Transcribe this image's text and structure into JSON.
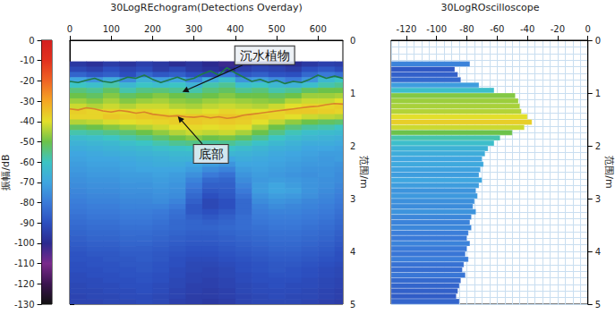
{
  "chart_data": [
    {
      "type": "heatmap",
      "title": "30LogREchogram(Detections Overday)",
      "y_label": "范围/m",
      "xlim": [
        0,
        660
      ],
      "xticks": [
        0,
        100,
        200,
        300,
        400,
        500,
        600
      ],
      "ylim": [
        0,
        5
      ],
      "yticks": [
        0,
        1,
        2,
        3,
        4,
        5
      ],
      "x_edges": [
        0,
        40,
        80,
        120,
        160,
        200,
        240,
        280,
        320,
        360,
        400,
        440,
        480,
        520,
        560,
        600,
        640,
        660
      ],
      "y_edges": [
        0.4,
        0.5,
        0.6,
        0.7,
        0.8,
        0.9,
        1.0,
        1.1,
        1.2,
        1.3,
        1.4,
        1.5,
        1.6,
        1.7,
        1.8,
        1.9,
        2.0,
        2.1,
        2.2,
        2.3,
        2.4,
        2.5,
        2.6,
        2.7,
        2.8,
        2.9,
        3.0,
        3.1,
        3.2,
        3.3,
        3.4,
        3.5,
        3.6,
        3.7,
        3.8,
        3.9,
        4.0,
        4.1,
        4.2,
        4.3,
        4.4,
        4.5,
        4.6,
        4.7,
        4.8,
        4.9,
        5.0
      ],
      "cells": [
        [
          -96,
          -98,
          -95,
          -97,
          -94,
          -96,
          -99,
          -97,
          -100,
          -102,
          -98,
          -95,
          -97,
          -99,
          -96,
          -94,
          -95
        ],
        [
          -92,
          -94,
          -90,
          -93,
          -91,
          -95,
          -92,
          -96,
          -98,
          -100,
          -94,
          -92,
          -93,
          -95,
          -90,
          -88,
          -91
        ],
        [
          -85,
          -88,
          -86,
          -90,
          -84,
          -88,
          -86,
          -90,
          -92,
          -80,
          -88,
          -86,
          -89,
          -90,
          -84,
          -80,
          -82
        ],
        [
          -70,
          -74,
          -68,
          -76,
          -66,
          -72,
          -70,
          -78,
          -68,
          -62,
          -74,
          -72,
          -76,
          -80,
          -74,
          -64,
          -60
        ],
        [
          -60,
          -62,
          -58,
          -64,
          -60,
          -62,
          -60,
          -66,
          -58,
          -56,
          -62,
          -60,
          -64,
          -66,
          -62,
          -58,
          -56
        ],
        [
          -54,
          -56,
          -52,
          -58,
          -55,
          -54,
          -56,
          -58,
          -54,
          -52,
          -56,
          -54,
          -58,
          -56,
          -52,
          -50,
          -50
        ],
        [
          -50,
          -52,
          -48,
          -52,
          -50,
          -48,
          -50,
          -52,
          -50,
          -48,
          -50,
          -50,
          -52,
          -50,
          -46,
          -46,
          -45
        ],
        [
          -46,
          -48,
          -45,
          -48,
          -46,
          -45,
          -47,
          -48,
          -46,
          -45,
          -46,
          -47,
          -48,
          -44,
          -42,
          -42,
          -40
        ],
        [
          -42,
          -44,
          -42,
          -44,
          -42,
          -42,
          -44,
          -45,
          -43,
          -42,
          -43,
          -44,
          -42,
          -40,
          -38,
          -38,
          -37
        ],
        [
          -37,
          -38,
          -38,
          -39,
          -38,
          -39,
          -40,
          -41,
          -40,
          -38,
          -39,
          -40,
          -38,
          -36,
          -36,
          -37,
          -38
        ],
        [
          -38,
          -38,
          -36,
          -37,
          -36,
          -36,
          -37,
          -36,
          -36,
          -35,
          -36,
          -37,
          -38,
          -40,
          -42,
          -43,
          -44
        ],
        [
          -44,
          -43,
          -41,
          -40,
          -39,
          -38,
          -37,
          -36,
          -37,
          -36,
          -37,
          -40,
          -43,
          -47,
          -50,
          -52,
          -53
        ],
        [
          -52,
          -50,
          -48,
          -46,
          -44,
          -42,
          -40,
          -39,
          -40,
          -39,
          -40,
          -45,
          -50,
          -54,
          -57,
          -58,
          -60
        ],
        [
          -58,
          -57,
          -55,
          -53,
          -50,
          -47,
          -44,
          -42,
          -43,
          -42,
          -45,
          -50,
          -55,
          -59,
          -62,
          -63,
          -64
        ],
        [
          -63,
          -62,
          -60,
          -58,
          -56,
          -53,
          -50,
          -48,
          -50,
          -49,
          -52,
          -56,
          -60,
          -63,
          -65,
          -66,
          -67
        ],
        [
          -66,
          -65,
          -64,
          -62,
          -60,
          -58,
          -56,
          -55,
          -57,
          -56,
          -58,
          -61,
          -64,
          -66,
          -68,
          -68,
          -69
        ],
        [
          -68,
          -67,
          -66,
          -65,
          -64,
          -62,
          -61,
          -60,
          -62,
          -61,
          -63,
          -65,
          -67,
          -68,
          -70,
          -70,
          -71
        ],
        [
          -70,
          -69,
          -68,
          -67,
          -66,
          -65,
          -64,
          -64,
          -66,
          -65,
          -66,
          -67,
          -69,
          -70,
          -71,
          -72,
          -72
        ],
        [
          -71,
          -70,
          -70,
          -69,
          -68,
          -67,
          -66,
          -66,
          -68,
          -70,
          -68,
          -69,
          -70,
          -71,
          -72,
          -73,
          -72
        ],
        [
          -72,
          -71,
          -71,
          -70,
          -69,
          -68,
          -68,
          -70,
          -72,
          -74,
          -70,
          -70,
          -71,
          -72,
          -73,
          -73,
          -74
        ],
        [
          -73,
          -72,
          -72,
          -71,
          -70,
          -70,
          -70,
          -72,
          -76,
          -78,
          -72,
          -71,
          -72,
          -73,
          -74,
          -74,
          -75
        ],
        [
          -74,
          -73,
          -73,
          -72,
          -72,
          -71,
          -72,
          -75,
          -80,
          -82,
          -74,
          -72,
          -73,
          -74,
          -75,
          -74,
          -76
        ],
        [
          -75,
          -74,
          -74,
          -73,
          -73,
          -72,
          -73,
          -78,
          -84,
          -85,
          -76,
          -73,
          -72,
          -73,
          -74,
          -75,
          -76
        ],
        [
          -76,
          -75,
          -75,
          -74,
          -74,
          -73,
          -74,
          -80,
          -86,
          -86,
          -78,
          -72,
          -70,
          -72,
          -74,
          -75,
          -77
        ],
        [
          -77,
          -76,
          -76,
          -75,
          -75,
          -74,
          -75,
          -82,
          -88,
          -87,
          -80,
          -72,
          -70,
          -71,
          -74,
          -76,
          -78
        ],
        [
          -78,
          -77,
          -77,
          -76,
          -76,
          -75,
          -76,
          -84,
          -90,
          -88,
          -82,
          -74,
          -72,
          -73,
          -75,
          -77,
          -79
        ],
        [
          -79,
          -78,
          -78,
          -77,
          -77,
          -76,
          -78,
          -86,
          -92,
          -90,
          -84,
          -76,
          -74,
          -75,
          -77,
          -78,
          -80
        ],
        [
          -80,
          -79,
          -79,
          -78,
          -78,
          -78,
          -80,
          -88,
          -92,
          -90,
          -84,
          -78,
          -76,
          -77,
          -78,
          -79,
          -81
        ],
        [
          -81,
          -80,
          -80,
          -79,
          -79,
          -80,
          -82,
          -88,
          -90,
          -88,
          -84,
          -79,
          -78,
          -78,
          -79,
          -80,
          -82
        ],
        [
          -82,
          -81,
          -81,
          -80,
          -80,
          -81,
          -83,
          -86,
          -88,
          -86,
          -83,
          -80,
          -79,
          -79,
          -80,
          -81,
          -83
        ],
        [
          -83,
          -82,
          -82,
          -81,
          -81,
          -82,
          -84,
          -85,
          -86,
          -85,
          -83,
          -81,
          -80,
          -80,
          -81,
          -82,
          -84
        ],
        [
          -84,
          -83,
          -83,
          -82,
          -82,
          -83,
          -84,
          -85,
          -85,
          -84,
          -83,
          -82,
          -81,
          -81,
          -82,
          -83,
          -85
        ],
        [
          -85,
          -84,
          -84,
          -83,
          -83,
          -84,
          -85,
          -86,
          -86,
          -85,
          -84,
          -83,
          -82,
          -82,
          -83,
          -84,
          -86
        ],
        [
          -86,
          -85,
          -85,
          -84,
          -84,
          -85,
          -86,
          -87,
          -87,
          -86,
          -85,
          -84,
          -83,
          -83,
          -84,
          -85,
          -87
        ],
        [
          -87,
          -86,
          -86,
          -85,
          -85,
          -86,
          -87,
          -88,
          -88,
          -87,
          -86,
          -85,
          -84,
          -84,
          -85,
          -86,
          -88
        ],
        [
          -88,
          -87,
          -87,
          -86,
          -86,
          -87,
          -88,
          -89,
          -89,
          -88,
          -87,
          -86,
          -85,
          -85,
          -86,
          -87,
          -89
        ],
        [
          -89,
          -88,
          -88,
          -87,
          -87,
          -88,
          -89,
          -90,
          -90,
          -89,
          -88,
          -87,
          -86,
          -86,
          -87,
          -88,
          -90
        ],
        [
          -89,
          -89,
          -88,
          -88,
          -87,
          -88,
          -90,
          -91,
          -91,
          -90,
          -89,
          -88,
          -87,
          -87,
          -88,
          -89,
          -90
        ],
        [
          -90,
          -89,
          -89,
          -88,
          -88,
          -89,
          -90,
          -92,
          -92,
          -91,
          -90,
          -89,
          -88,
          -88,
          -89,
          -90,
          -91
        ],
        [
          -90,
          -90,
          -89,
          -89,
          -88,
          -89,
          -91,
          -92,
          -93,
          -92,
          -90,
          -89,
          -88,
          -89,
          -90,
          -91,
          -92
        ],
        [
          -91,
          -90,
          -90,
          -89,
          -89,
          -90,
          -91,
          -93,
          -93,
          -92,
          -91,
          -90,
          -89,
          -89,
          -90,
          -91,
          -92
        ],
        [
          -91,
          -91,
          -90,
          -90,
          -89,
          -90,
          -92,
          -93,
          -94,
          -93,
          -91,
          -90,
          -90,
          -90,
          -91,
          -92,
          -93
        ],
        [
          -92,
          -91,
          -91,
          -90,
          -90,
          -91,
          -92,
          -94,
          -94,
          -93,
          -92,
          -91,
          -90,
          -91,
          -91,
          -92,
          -93
        ],
        [
          -92,
          -92,
          -91,
          -91,
          -90,
          -91,
          -93,
          -94,
          -95,
          -94,
          -92,
          -91,
          -91,
          -91,
          -92,
          -93,
          -94
        ],
        [
          -93,
          -92,
          -92,
          -91,
          -91,
          -92,
          -93,
          -95,
          -95,
          -94,
          -93,
          -92,
          -91,
          -92,
          -92,
          -93,
          -94
        ],
        [
          -93,
          -93,
          -92,
          -92,
          -91,
          -92,
          -94,
          -95,
          -96,
          -95,
          -93,
          -92,
          -92,
          -92,
          -93,
          -94,
          -95
        ]
      ],
      "colorbar": {
        "label": "振幅/dB",
        "range": [
          -130,
          0
        ],
        "ticks": [
          0,
          -10,
          -20,
          -30,
          -40,
          -50,
          -60,
          -70,
          -80,
          -90,
          -100,
          -110,
          -120,
          -130
        ]
      },
      "series": [
        {
          "type": "line",
          "color": "#1e7a45",
          "x": [
            0,
            20,
            40,
            60,
            80,
            100,
            120,
            140,
            160,
            180,
            200,
            220,
            240,
            260,
            280,
            300,
            320,
            340,
            360,
            380,
            400,
            420,
            440,
            460,
            480,
            500,
            520,
            540,
            560,
            580,
            600,
            620,
            640,
            660
          ],
          "values": [
            0.78,
            0.8,
            0.76,
            0.72,
            0.78,
            0.8,
            0.76,
            0.7,
            0.72,
            0.66,
            0.74,
            0.8,
            0.75,
            0.7,
            0.76,
            0.72,
            0.64,
            0.58,
            0.66,
            0.52,
            0.62,
            0.7,
            0.78,
            0.74,
            0.8,
            0.76,
            0.82,
            0.78,
            0.8,
            0.74,
            0.66,
            0.72,
            0.68,
            0.72
          ]
        },
        {
          "type": "line",
          "color": "#d9822b",
          "x": [
            0,
            20,
            40,
            60,
            80,
            100,
            120,
            140,
            160,
            180,
            200,
            220,
            240,
            260,
            280,
            300,
            320,
            340,
            360,
            380,
            400,
            420,
            440,
            460,
            480,
            500,
            520,
            540,
            560,
            580,
            600,
            620,
            640,
            660
          ],
          "values": [
            1.3,
            1.32,
            1.28,
            1.3,
            1.34,
            1.36,
            1.33,
            1.35,
            1.38,
            1.36,
            1.4,
            1.42,
            1.44,
            1.43,
            1.45,
            1.46,
            1.44,
            1.47,
            1.45,
            1.48,
            1.46,
            1.42,
            1.4,
            1.38,
            1.36,
            1.34,
            1.32,
            1.3,
            1.28,
            1.26,
            1.25,
            1.22,
            1.2,
            1.21
          ]
        }
      ],
      "annotations": [
        {
          "text": "沉水植物",
          "x": 272,
          "y": 0.98
        },
        {
          "text": "底部",
          "x": 261,
          "y": 1.44
        }
      ]
    },
    {
      "type": "bar",
      "orientation": "horizontal",
      "title": "30LogROscilloscope",
      "y_label": "范围/m",
      "xlim": [
        -130,
        0
      ],
      "xticks": [
        -120,
        -100,
        -80,
        -60,
        -40,
        -20,
        0
      ],
      "ylim": [
        0,
        5
      ],
      "yticks": [
        0,
        1,
        2,
        3,
        4,
        5
      ],
      "grid": true,
      "y_edges": [
        0.4,
        0.5,
        0.6,
        0.7,
        0.8,
        0.9,
        1.0,
        1.1,
        1.2,
        1.3,
        1.4,
        1.5,
        1.6,
        1.7,
        1.8,
        1.9,
        2.0,
        2.1,
        2.2,
        2.3,
        2.4,
        2.5,
        2.6,
        2.7,
        2.8,
        2.9,
        3.0,
        3.1,
        3.2,
        3.3,
        3.4,
        3.5,
        3.6,
        3.7,
        3.8,
        3.9,
        4.0,
        4.1,
        4.2,
        4.3,
        4.4,
        4.5,
        4.6,
        4.7,
        4.8,
        4.9,
        5.0
      ],
      "values": [
        -78,
        -88,
        -86,
        -84,
        -72,
        -62,
        -48,
        -46,
        -45,
        -44,
        -40,
        -37,
        -42,
        -50,
        -58,
        -62,
        -66,
        -68,
        -70,
        -69,
        -71,
        -72,
        -70,
        -72,
        -74,
        -73,
        -75,
        -76,
        -74,
        -77,
        -78,
        -77,
        -79,
        -80,
        -78,
        -80,
        -81,
        -79,
        -82,
        -83,
        -81,
        -84,
        -85,
        -86,
        -87,
        -85
      ]
    }
  ]
}
